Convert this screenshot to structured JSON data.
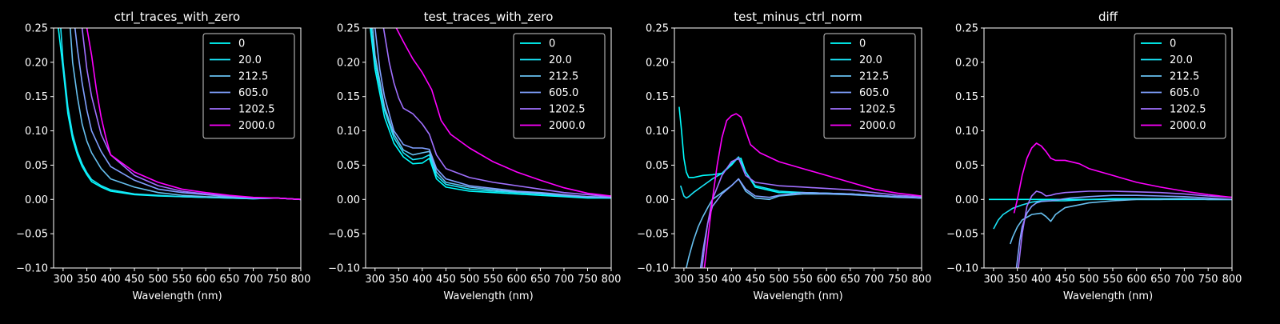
{
  "figure": {
    "background": "#000000",
    "foreground": "#ffffff"
  },
  "series_colors": [
    "#00ffff",
    "#1ae5f8",
    "#67c0f0",
    "#80a0ff",
    "#a070ff",
    "#ff00ff"
  ],
  "chart_data": [
    {
      "type": "line",
      "title": "ctrl_traces_with_zero",
      "xlabel": "Wavelength (nm)",
      "ylabel": "",
      "xlim": [
        280,
        800
      ],
      "ylim": [
        -0.1,
        0.25
      ],
      "xticks": [
        "300",
        "350",
        "400",
        "450",
        "500",
        "550",
        "600",
        "650",
        "700",
        "750",
        "800"
      ],
      "yticks": [
        "−0.10",
        "−0.05",
        "0.00",
        "0.05",
        "0.10",
        "0.15",
        "0.20",
        "0.25"
      ],
      "legend_position": "top-right",
      "series": [
        {
          "name": "0",
          "x": [
            290,
            300,
            310,
            320,
            330,
            340,
            350,
            360,
            380,
            400,
            450,
            500,
            550,
            600,
            650,
            700,
            750,
            800
          ],
          "y": [
            0.25,
            0.19,
            0.125,
            0.088,
            0.065,
            0.048,
            0.036,
            0.026,
            0.018,
            0.012,
            0.007,
            0.005,
            0.004,
            0.003,
            0.002,
            0.001,
            0.002,
            0.0
          ]
        },
        {
          "name": "20.0",
          "x": [
            295,
            300,
            310,
            320,
            330,
            340,
            350,
            360,
            380,
            400,
            450,
            500,
            550,
            600,
            650,
            700,
            750,
            800
          ],
          "y": [
            0.25,
            0.2,
            0.135,
            0.095,
            0.07,
            0.052,
            0.039,
            0.029,
            0.02,
            0.014,
            0.008,
            0.006,
            0.004,
            0.003,
            0.002,
            0.001,
            0.002,
            0.0
          ]
        },
        {
          "name": "212.5",
          "x": [
            315,
            320,
            330,
            340,
            350,
            360,
            380,
            400,
            450,
            500,
            550,
            600,
            650,
            700,
            750,
            800
          ],
          "y": [
            0.25,
            0.2,
            0.15,
            0.11,
            0.085,
            0.068,
            0.045,
            0.03,
            0.018,
            0.01,
            0.006,
            0.004,
            0.003,
            0.002,
            0.002,
            0.0
          ]
        },
        {
          "name": "605.0",
          "x": [
            325,
            330,
            340,
            350,
            360,
            380,
            400,
            450,
            500,
            550,
            600,
            650,
            700,
            750,
            800
          ],
          "y": [
            0.25,
            0.22,
            0.17,
            0.13,
            0.1,
            0.07,
            0.048,
            0.028,
            0.015,
            0.01,
            0.007,
            0.004,
            0.002,
            0.002,
            0.0
          ]
        },
        {
          "name": "1202.5",
          "x": [
            340,
            350,
            360,
            380,
            400,
            450,
            500,
            550,
            600,
            650,
            700,
            750,
            800
          ],
          "y": [
            0.25,
            0.19,
            0.15,
            0.095,
            0.065,
            0.035,
            0.02,
            0.012,
            0.008,
            0.005,
            0.002,
            0.002,
            0.0
          ]
        },
        {
          "name": "2000.0",
          "x": [
            350,
            360,
            370,
            380,
            390,
            400,
            450,
            500,
            550,
            600,
            650,
            700,
            750,
            800
          ],
          "y": [
            0.25,
            0.21,
            0.16,
            0.12,
            0.09,
            0.065,
            0.04,
            0.025,
            0.015,
            0.01,
            0.006,
            0.003,
            0.002,
            0.0
          ]
        }
      ]
    },
    {
      "type": "line",
      "title": "test_traces_with_zero",
      "xlabel": "Wavelength (nm)",
      "ylabel": "",
      "xlim": [
        280,
        800
      ],
      "ylim": [
        -0.1,
        0.25
      ],
      "xticks": [
        "300",
        "350",
        "400",
        "450",
        "500",
        "550",
        "600",
        "650",
        "700",
        "750",
        "800"
      ],
      "yticks": [
        "−0.10",
        "−0.05",
        "0.00",
        "0.05",
        "0.10",
        "0.15",
        "0.20",
        "0.25"
      ],
      "legend_position": "top-right",
      "series": [
        {
          "name": "0",
          "x": [
            290,
            300,
            320,
            340,
            360,
            380,
            400,
            415,
            430,
            450,
            500,
            550,
            600,
            650,
            700,
            750,
            800
          ],
          "y": [
            0.25,
            0.19,
            0.12,
            0.082,
            0.062,
            0.052,
            0.053,
            0.06,
            0.03,
            0.018,
            0.012,
            0.01,
            0.008,
            0.006,
            0.004,
            0.002,
            0.002
          ]
        },
        {
          "name": "20.0",
          "x": [
            292,
            300,
            320,
            340,
            360,
            380,
            400,
            415,
            430,
            450,
            500,
            550,
            600,
            650,
            700,
            750,
            800
          ],
          "y": [
            0.25,
            0.2,
            0.13,
            0.09,
            0.068,
            0.058,
            0.06,
            0.065,
            0.035,
            0.022,
            0.015,
            0.012,
            0.01,
            0.008,
            0.005,
            0.003,
            0.002
          ]
        },
        {
          "name": "212.5",
          "x": [
            295,
            300,
            320,
            340,
            360,
            380,
            400,
            415,
            430,
            450,
            500,
            550,
            600,
            650,
            700,
            750,
            800
          ],
          "y": [
            0.25,
            0.21,
            0.135,
            0.095,
            0.072,
            0.065,
            0.068,
            0.07,
            0.04,
            0.025,
            0.018,
            0.014,
            0.011,
            0.009,
            0.006,
            0.004,
            0.003
          ]
        },
        {
          "name": "605.0",
          "x": [
            300,
            310,
            320,
            340,
            360,
            380,
            400,
            415,
            430,
            450,
            500,
            550,
            600,
            650,
            700,
            750,
            800
          ],
          "y": [
            0.25,
            0.19,
            0.15,
            0.1,
            0.08,
            0.075,
            0.075,
            0.073,
            0.045,
            0.03,
            0.02,
            0.016,
            0.012,
            0.01,
            0.007,
            0.004,
            0.003
          ]
        },
        {
          "name": "1202.5",
          "x": [
            318,
            330,
            340,
            350,
            360,
            380,
            400,
            415,
            430,
            450,
            500,
            550,
            600,
            650,
            700,
            750,
            800
          ],
          "y": [
            0.25,
            0.2,
            0.17,
            0.148,
            0.133,
            0.125,
            0.11,
            0.095,
            0.065,
            0.045,
            0.032,
            0.025,
            0.02,
            0.015,
            0.01,
            0.007,
            0.004
          ]
        },
        {
          "name": "2000.0",
          "x": [
            345,
            360,
            380,
            400,
            420,
            440,
            460,
            500,
            550,
            600,
            650,
            700,
            750,
            800
          ],
          "y": [
            0.25,
            0.23,
            0.205,
            0.185,
            0.16,
            0.115,
            0.095,
            0.075,
            0.055,
            0.04,
            0.028,
            0.017,
            0.009,
            0.005
          ]
        }
      ]
    },
    {
      "type": "line",
      "title": "test_minus_ctrl_norm",
      "xlabel": "Wavelength (nm)",
      "ylabel": "",
      "xlim": [
        280,
        800
      ],
      "ylim": [
        -0.1,
        0.25
      ],
      "xticks": [
        "300",
        "350",
        "400",
        "450",
        "500",
        "550",
        "600",
        "650",
        "700",
        "750",
        "800"
      ],
      "yticks": [
        "−0.10",
        "−0.05",
        "0.00",
        "0.05",
        "0.10",
        "0.15",
        "0.20",
        "0.25"
      ],
      "legend_position": "top-right",
      "series": [
        {
          "name": "0",
          "x": [
            290,
            295,
            300,
            305,
            310,
            320,
            340,
            360,
            380,
            400,
            410,
            420,
            430,
            450,
            500,
            550,
            600,
            650,
            700,
            750,
            800
          ],
          "y": [
            0.135,
            0.1,
            0.06,
            0.04,
            0.032,
            0.032,
            0.035,
            0.036,
            0.038,
            0.05,
            0.058,
            0.06,
            0.04,
            0.018,
            0.01,
            0.01,
            0.009,
            0.008,
            0.006,
            0.004,
            0.002
          ]
        },
        {
          "name": "20.0",
          "x": [
            293,
            300,
            305,
            310,
            320,
            340,
            360,
            380,
            400,
            415,
            430,
            450,
            500,
            550,
            600,
            650,
            700,
            750,
            800
          ],
          "y": [
            0.02,
            0.005,
            0.002,
            0.004,
            0.01,
            0.02,
            0.03,
            0.038,
            0.052,
            0.062,
            0.04,
            0.02,
            0.012,
            0.01,
            0.009,
            0.008,
            0.006,
            0.004,
            0.002
          ]
        },
        {
          "name": "212.5",
          "x": [
            305,
            310,
            320,
            330,
            340,
            350,
            360,
            380,
            400,
            415,
            430,
            450,
            480,
            500,
            550,
            600,
            650,
            700,
            750,
            800
          ],
          "y": [
            -0.1,
            -0.085,
            -0.06,
            -0.04,
            -0.025,
            -0.012,
            0.0,
            0.01,
            0.02,
            0.03,
            0.012,
            0.002,
            0.0,
            0.005,
            0.008,
            0.008,
            0.007,
            0.005,
            0.003,
            0.002
          ]
        },
        {
          "name": "605.0",
          "x": [
            335,
            340,
            350,
            360,
            380,
            400,
            415,
            430,
            450,
            480,
            500,
            550,
            600,
            650,
            700,
            750,
            800
          ],
          "y": [
            -0.1,
            -0.075,
            -0.035,
            -0.01,
            0.008,
            0.02,
            0.03,
            0.015,
            0.005,
            0.003,
            0.006,
            0.01,
            0.009,
            0.008,
            0.006,
            0.004,
            0.002
          ]
        },
        {
          "name": "1202.5",
          "x": [
            338,
            345,
            350,
            360,
            380,
            400,
            415,
            430,
            450,
            500,
            550,
            600,
            650,
            700,
            750,
            800
          ],
          "y": [
            -0.1,
            -0.06,
            -0.035,
            0.0,
            0.035,
            0.055,
            0.06,
            0.035,
            0.025,
            0.02,
            0.018,
            0.016,
            0.014,
            0.01,
            0.006,
            0.004
          ]
        },
        {
          "name": "2000.0",
          "x": [
            343,
            350,
            360,
            370,
            380,
            390,
            400,
            410,
            420,
            430,
            440,
            460,
            500,
            550,
            600,
            650,
            700,
            750,
            800
          ],
          "y": [
            -0.1,
            -0.06,
            0.0,
            0.05,
            0.09,
            0.115,
            0.122,
            0.125,
            0.12,
            0.1,
            0.08,
            0.068,
            0.055,
            0.045,
            0.035,
            0.025,
            0.015,
            0.009,
            0.005
          ]
        }
      ]
    },
    {
      "type": "line",
      "title": "diff",
      "xlabel": "Wavelength (nm)",
      "ylabel": "",
      "xlim": [
        280,
        800
      ],
      "ylim": [
        -0.1,
        0.25
      ],
      "xticks": [
        "300",
        "350",
        "400",
        "450",
        "500",
        "550",
        "600",
        "650",
        "700",
        "750",
        "800"
      ],
      "yticks": [
        "−0.10",
        "−0.05",
        "0.00",
        "0.05",
        "0.10",
        "0.15",
        "0.20",
        "0.25"
      ],
      "legend_position": "top-right",
      "series": [
        {
          "name": "0",
          "x": [
            290,
            350,
            400,
            500,
            600,
            700,
            800
          ],
          "y": [
            0.0,
            0.0,
            0.0,
            0.0,
            0.0,
            0.0,
            0.0
          ]
        },
        {
          "name": "20.0",
          "x": [
            300,
            310,
            320,
            340,
            360,
            380,
            400,
            450,
            500,
            550,
            600,
            650,
            700,
            750,
            800
          ],
          "y": [
            -0.043,
            -0.03,
            -0.022,
            -0.013,
            -0.008,
            -0.004,
            -0.002,
            -0.002,
            0.0,
            0.001,
            0.001,
            0.001,
            0.001,
            0.0,
            0.0
          ]
        },
        {
          "name": "212.5",
          "x": [
            335,
            340,
            350,
            360,
            380,
            400,
            410,
            420,
            430,
            450,
            500,
            550,
            600,
            650,
            700,
            750,
            800
          ],
          "y": [
            -0.065,
            -0.055,
            -0.04,
            -0.03,
            -0.022,
            -0.02,
            -0.025,
            -0.032,
            -0.022,
            -0.012,
            -0.005,
            -0.002,
            0.0,
            0.0,
            0.001,
            0.0,
            0.0
          ]
        },
        {
          "name": "605.0",
          "x": [
            348,
            355,
            360,
            370,
            380,
            390,
            400,
            420,
            440,
            460,
            500,
            550,
            600,
            650,
            700,
            750,
            800
          ],
          "y": [
            -0.1,
            -0.06,
            -0.04,
            -0.02,
            -0.01,
            -0.005,
            -0.003,
            -0.002,
            0.0,
            0.002,
            0.004,
            0.006,
            0.006,
            0.005,
            0.004,
            0.002,
            0.0
          ]
        },
        {
          "name": "1202.5",
          "x": [
            352,
            360,
            370,
            380,
            390,
            400,
            410,
            420,
            430,
            450,
            500,
            550,
            600,
            650,
            700,
            750,
            800
          ],
          "y": [
            -0.1,
            -0.05,
            -0.01,
            0.005,
            0.012,
            0.01,
            0.005,
            0.006,
            0.008,
            0.01,
            0.012,
            0.012,
            0.011,
            0.01,
            0.008,
            0.005,
            0.003
          ]
        },
        {
          "name": "2000.0",
          "x": [
            343,
            350,
            360,
            370,
            380,
            390,
            400,
            410,
            420,
            430,
            450,
            480,
            500,
            550,
            600,
            650,
            700,
            750,
            800
          ],
          "y": [
            -0.02,
            0.0,
            0.035,
            0.06,
            0.075,
            0.082,
            0.078,
            0.07,
            0.06,
            0.057,
            0.057,
            0.052,
            0.045,
            0.035,
            0.025,
            0.018,
            0.012,
            0.007,
            0.003
          ]
        }
      ]
    }
  ]
}
